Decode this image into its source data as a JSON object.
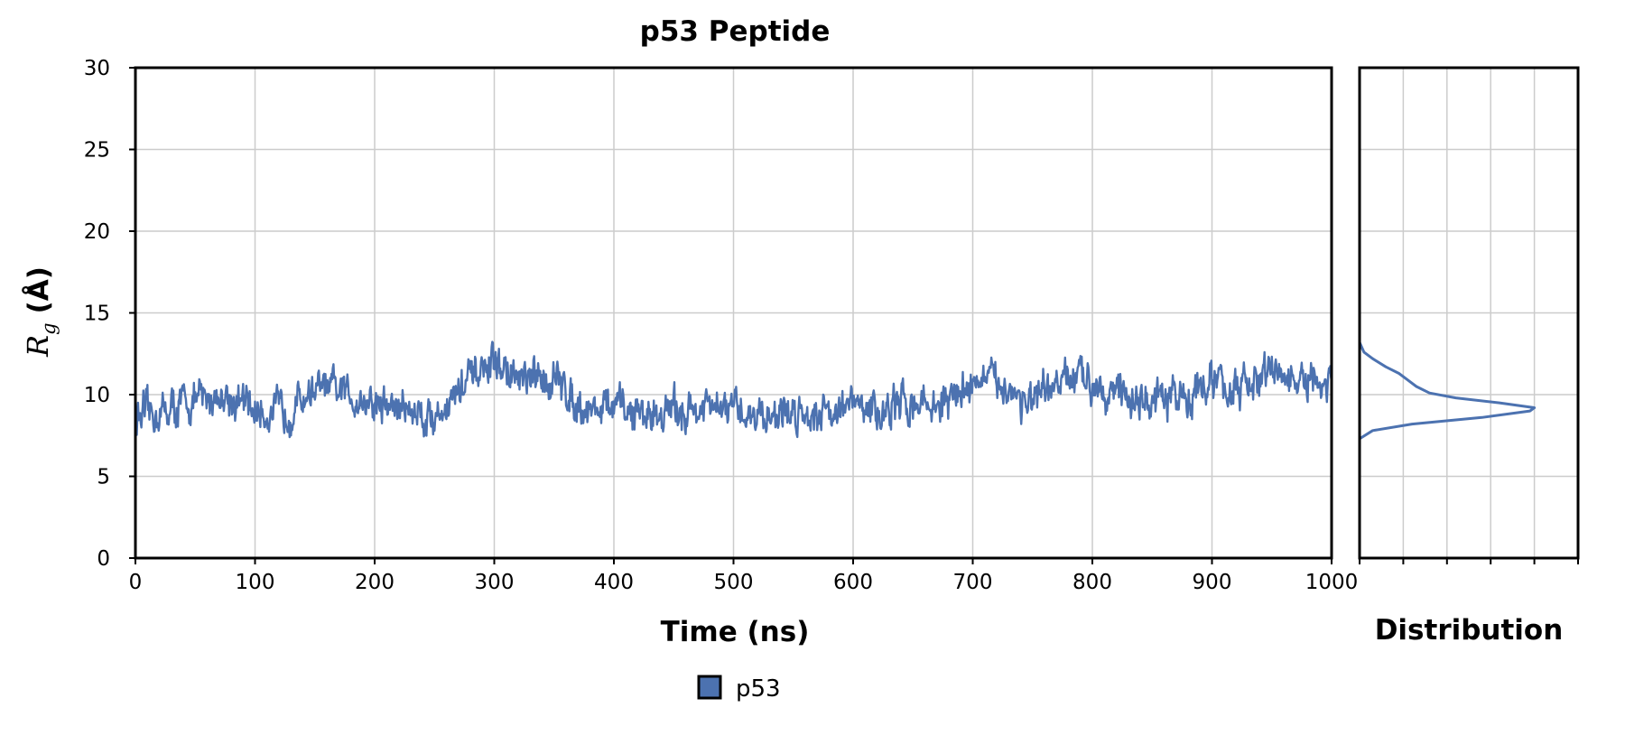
{
  "chart_data": {
    "type": "line",
    "title": "p53 Peptide",
    "xlabel": "Time (ns)",
    "ylabel_symbol": "R",
    "ylabel_subscript": "g",
    "ylabel_unit": "(Å)",
    "side_xlabel": "Distribution",
    "xlim": [
      0,
      1000
    ],
    "ylim": [
      0,
      30
    ],
    "xticks": [
      "0",
      "100",
      "200",
      "300",
      "400",
      "500",
      "600",
      "700",
      "800",
      "900",
      "1000"
    ],
    "yticks": [
      "0",
      "5",
      "10",
      "15",
      "20",
      "25",
      "30"
    ],
    "grid": true,
    "legend_position": "bottom-center",
    "series": [
      {
        "name": "p53",
        "color": "#4c72b0",
        "x": [
          0,
          25,
          50,
          75,
          100,
          125,
          150,
          175,
          200,
          225,
          250,
          275,
          300,
          325,
          350,
          375,
          400,
          425,
          450,
          475,
          500,
          525,
          550,
          575,
          600,
          625,
          650,
          675,
          700,
          725,
          750,
          775,
          800,
          825,
          850,
          875,
          900,
          925,
          950,
          975,
          1000
        ],
        "y": [
          8.5,
          9.0,
          9.6,
          10.0,
          9.0,
          8.9,
          10.4,
          10.1,
          9.4,
          9.2,
          8.6,
          10.6,
          11.9,
          10.7,
          11.0,
          9.2,
          9.2,
          8.8,
          9.0,
          9.1,
          9.0,
          8.8,
          8.9,
          9.1,
          9.3,
          8.9,
          9.6,
          9.3,
          10.9,
          10.7,
          9.3,
          10.8,
          11.0,
          10.0,
          9.4,
          9.9,
          10.8,
          10.2,
          11.5,
          10.6,
          10.5
        ]
      }
    ],
    "distribution": {
      "x_range": [
        0,
        5
      ],
      "rg": [
        7.3,
        7.8,
        8.2,
        8.6,
        9.0,
        9.2,
        9.5,
        9.8,
        10.1,
        10.5,
        10.9,
        11.3,
        11.7,
        12.2,
        12.6,
        13.2
      ],
      "density": [
        0.0,
        0.3,
        1.2,
        2.8,
        3.9,
        4.0,
        3.2,
        2.2,
        1.6,
        1.3,
        1.1,
        0.9,
        0.6,
        0.3,
        0.1,
        0.0
      ]
    }
  }
}
